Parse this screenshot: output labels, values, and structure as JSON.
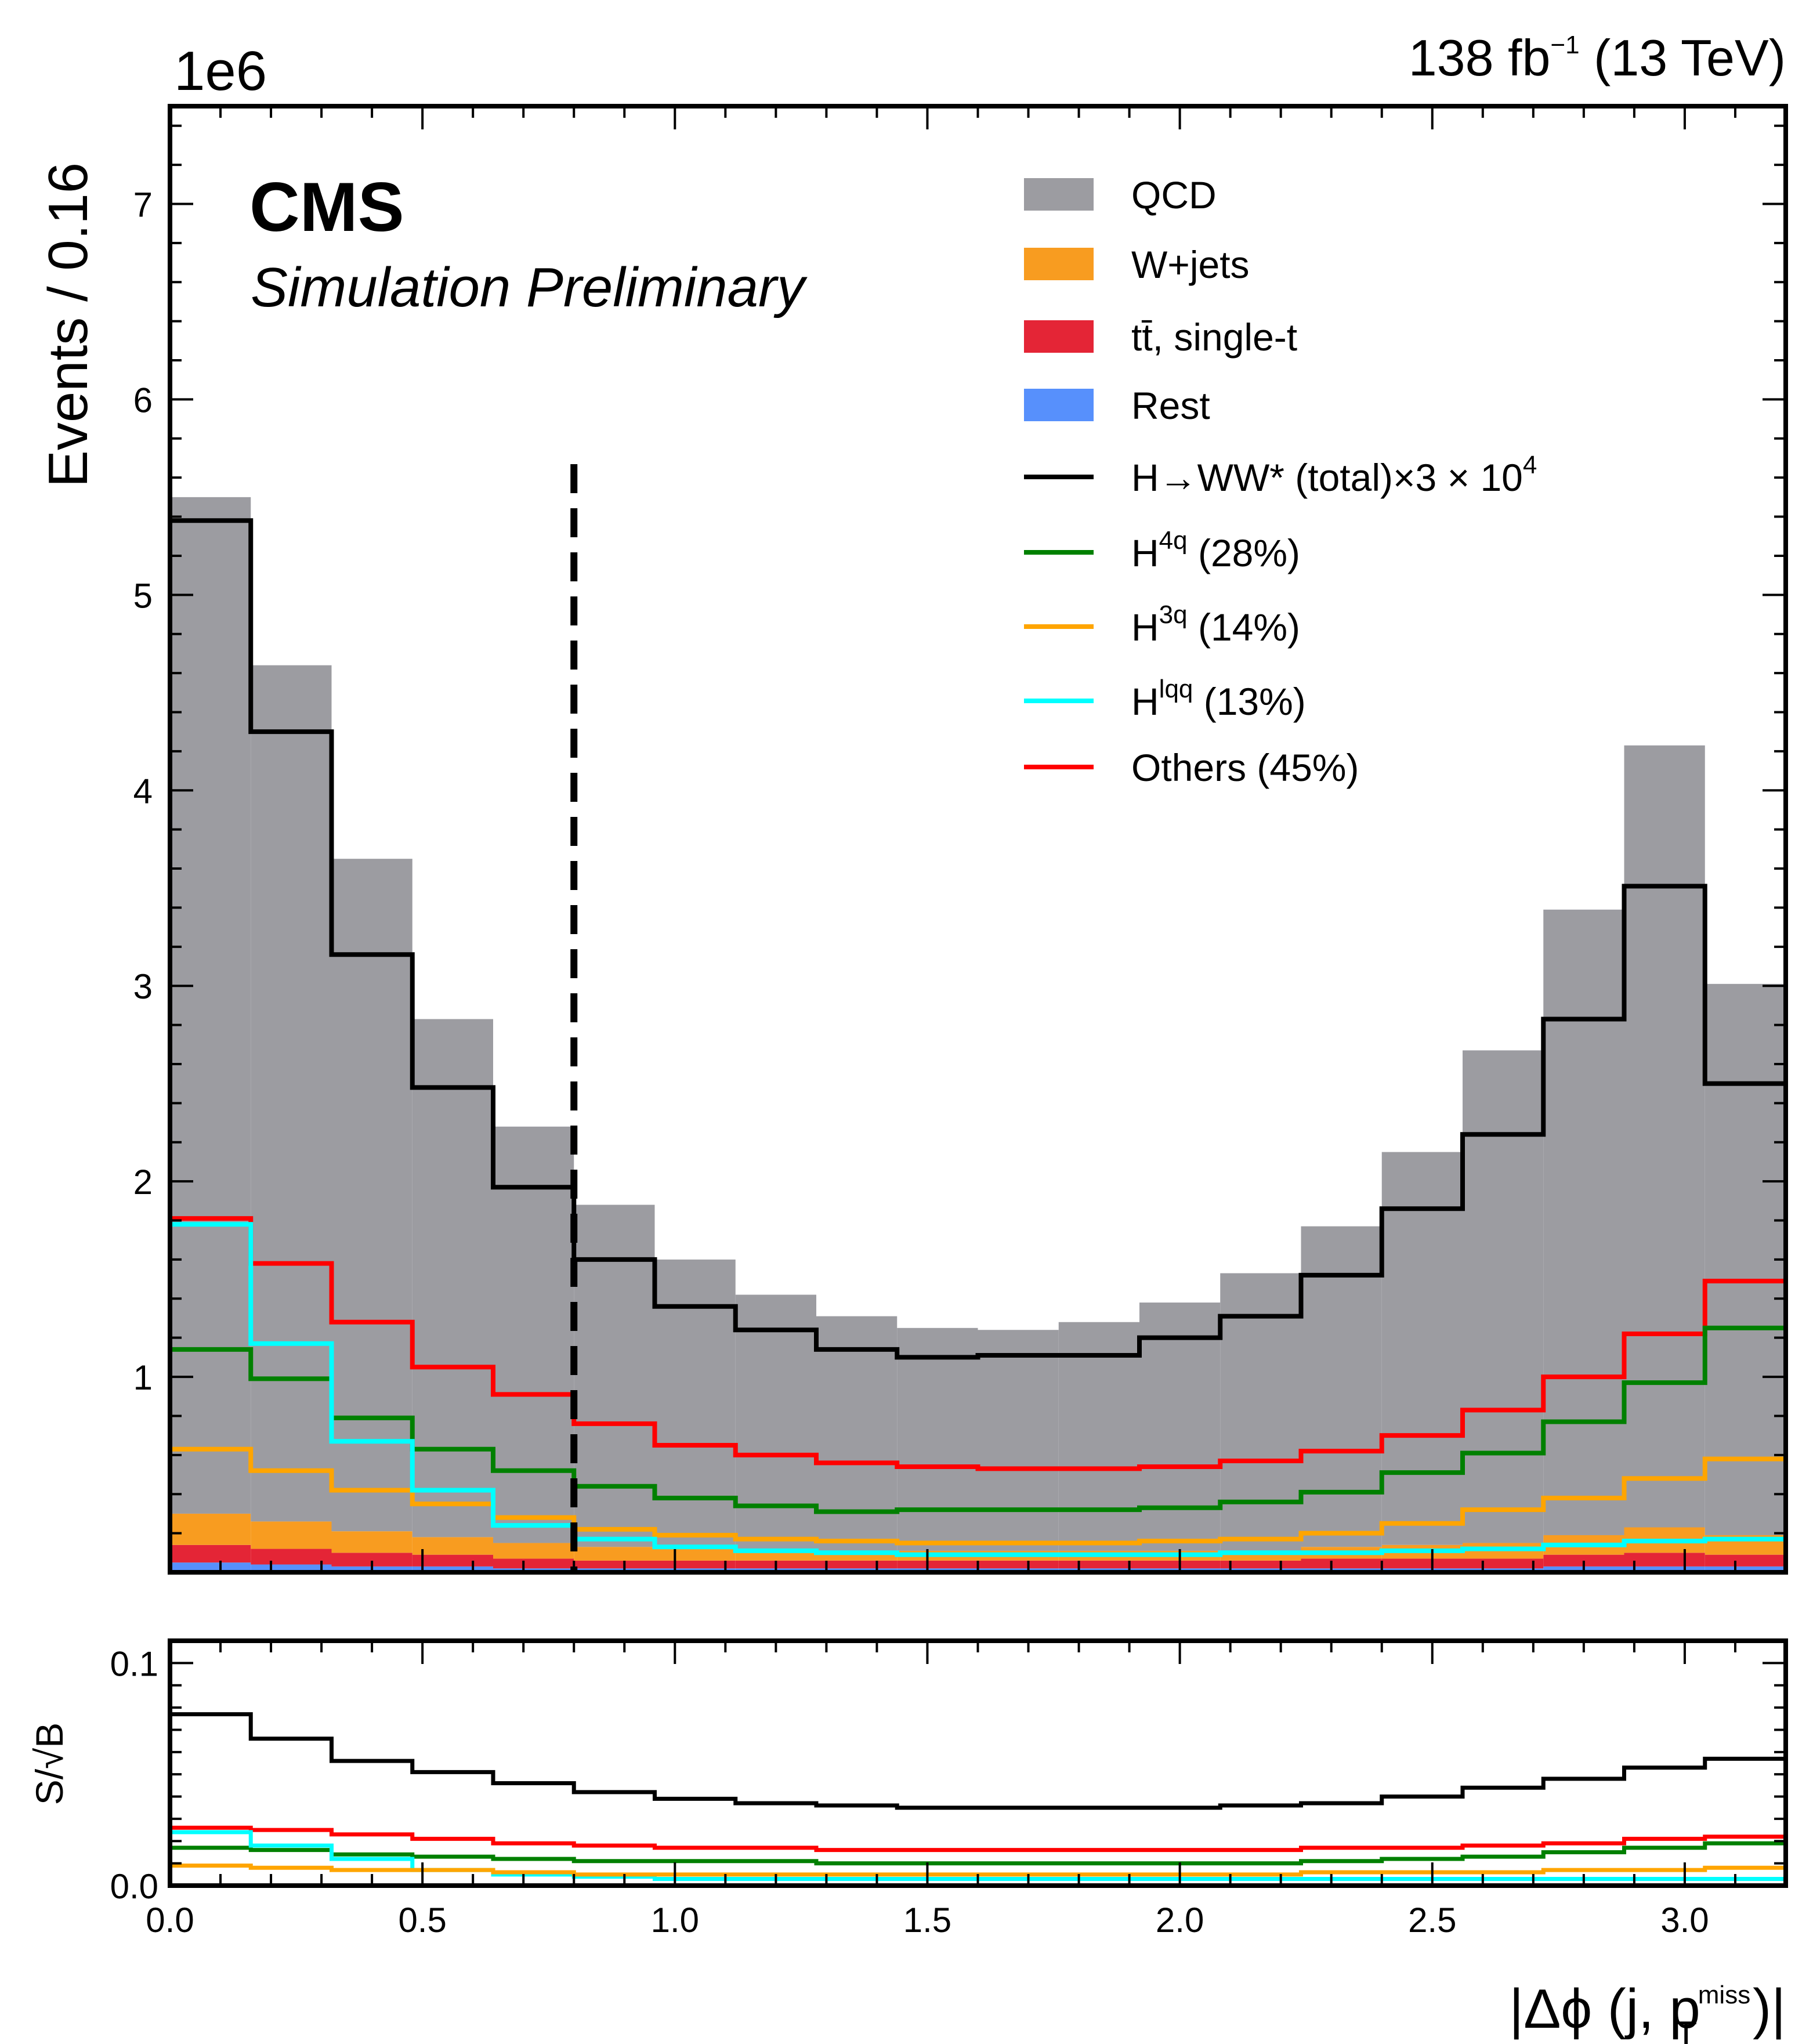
{
  "header": {
    "experiment": "CMS",
    "status": "Simulation Preliminary",
    "lumi": "138 fb",
    "lumi_sup": "−1",
    "energy": " (13 TeV)",
    "offset_label": "1e6"
  },
  "chart_data": [
    {
      "panel": "main",
      "type": "histogram",
      "ylabel": "Events / 0.16",
      "ylim": [
        0,
        7.5
      ],
      "y_multiplier": "1e6",
      "yticks": [
        "1",
        "2",
        "3",
        "4",
        "5",
        "6",
        "7"
      ],
      "bin_edges": [
        0.0,
        0.16,
        0.32,
        0.48,
        0.64,
        0.8,
        0.96,
        1.12,
        1.28,
        1.44,
        1.6,
        1.76,
        1.92,
        2.08,
        2.24,
        2.4,
        2.56,
        2.72,
        2.88,
        3.04,
        3.2
      ],
      "cut_line_x": 0.8,
      "stacked_background": [
        {
          "name": "Rest",
          "color": "#5790fc",
          "values": [
            0.05,
            0.04,
            0.03,
            0.03,
            0.02,
            0.02,
            0.02,
            0.02,
            0.02,
            0.02,
            0.02,
            0.02,
            0.02,
            0.02,
            0.02,
            0.02,
            0.02,
            0.03,
            0.03,
            0.03
          ]
        },
        {
          "name": "tt̄, single-t",
          "color": "#e42536",
          "values": [
            0.09,
            0.08,
            0.07,
            0.06,
            0.05,
            0.04,
            0.04,
            0.04,
            0.04,
            0.04,
            0.04,
            0.04,
            0.04,
            0.04,
            0.05,
            0.05,
            0.05,
            0.06,
            0.07,
            0.06
          ]
        },
        {
          "name": "W+jets",
          "color": "#f89c20",
          "values": [
            0.16,
            0.14,
            0.11,
            0.09,
            0.08,
            0.07,
            0.06,
            0.05,
            0.05,
            0.05,
            0.05,
            0.05,
            0.05,
            0.05,
            0.06,
            0.07,
            0.08,
            0.1,
            0.13,
            0.1
          ]
        },
        {
          "name": "QCD",
          "color": "#9c9ca1",
          "values": [
            5.2,
            4.38,
            3.44,
            2.65,
            2.13,
            1.75,
            1.48,
            1.31,
            1.2,
            1.14,
            1.13,
            1.17,
            1.27,
            1.42,
            1.64,
            2.01,
            2.52,
            3.2,
            4.0,
            2.82
          ]
        }
      ],
      "signal_lines": [
        {
          "name": "H→WW* (total)×3 × 10",
          "sup": "4",
          "color": "#000000",
          "values": [
            5.38,
            4.3,
            3.16,
            2.48,
            1.97,
            1.6,
            1.36,
            1.24,
            1.14,
            1.1,
            1.11,
            1.11,
            1.2,
            1.31,
            1.52,
            1.86,
            2.24,
            2.83,
            3.51,
            2.5
          ]
        },
        {
          "name": "H",
          "sup": "4q",
          "suffix": " (28%)",
          "color": "#008000",
          "values": [
            1.14,
            0.99,
            0.79,
            0.63,
            0.52,
            0.44,
            0.38,
            0.34,
            0.31,
            0.32,
            0.32,
            0.32,
            0.33,
            0.36,
            0.41,
            0.51,
            0.61,
            0.77,
            0.97,
            1.25
          ]
        },
        {
          "name": "H",
          "sup": "3q",
          "suffix": " (14%)",
          "color": "#ffa500",
          "values": [
            0.63,
            0.52,
            0.42,
            0.35,
            0.28,
            0.22,
            0.19,
            0.17,
            0.16,
            0.15,
            0.15,
            0.15,
            0.16,
            0.17,
            0.2,
            0.25,
            0.32,
            0.38,
            0.48,
            0.58
          ]
        },
        {
          "name": "H",
          "sup": "lqq",
          "suffix": " (13%)",
          "color": "#00ffff",
          "values": [
            1.78,
            1.17,
            0.67,
            0.42,
            0.24,
            0.17,
            0.13,
            0.11,
            0.1,
            0.09,
            0.09,
            0.09,
            0.09,
            0.1,
            0.1,
            0.11,
            0.12,
            0.14,
            0.16,
            0.17
          ]
        },
        {
          "name": "Others",
          "suffix": " (45%)",
          "color": "#ff0000",
          "values": [
            1.81,
            1.58,
            1.28,
            1.05,
            0.91,
            0.76,
            0.65,
            0.6,
            0.56,
            0.54,
            0.53,
            0.53,
            0.54,
            0.57,
            0.62,
            0.7,
            0.83,
            1.0,
            1.22,
            1.49
          ]
        }
      ],
      "legend_placement": "top-right"
    },
    {
      "panel": "ratio",
      "type": "histogram",
      "ylabel": "S/√B",
      "ylim": [
        0.0,
        0.11
      ],
      "yticks": [
        "0.0",
        "0.1"
      ],
      "xlim": [
        0.0,
        3.2
      ],
      "xticks": [
        "0.0",
        "0.5",
        "1.0",
        "1.5",
        "2.0",
        "2.5",
        "3.0"
      ],
      "xlabel": "|Δϕ (j, p",
      "xlabel_sup": "miss",
      "xlabel_sub": "T",
      "xlabel_end": ")|",
      "series": [
        {
          "name": "H→WW* (total)",
          "color": "#000000",
          "values": [
            0.077,
            0.066,
            0.056,
            0.051,
            0.046,
            0.042,
            0.039,
            0.037,
            0.036,
            0.035,
            0.035,
            0.035,
            0.035,
            0.036,
            0.037,
            0.04,
            0.044,
            0.048,
            0.053,
            0.057
          ]
        },
        {
          "name": "Others",
          "color": "#ff0000",
          "values": [
            0.026,
            0.025,
            0.023,
            0.021,
            0.019,
            0.018,
            0.017,
            0.017,
            0.016,
            0.016,
            0.016,
            0.016,
            0.016,
            0.016,
            0.017,
            0.017,
            0.018,
            0.019,
            0.021,
            0.022
          ]
        },
        {
          "name": "H4q",
          "color": "#008000",
          "values": [
            0.017,
            0.016,
            0.014,
            0.013,
            0.012,
            0.011,
            0.011,
            0.011,
            0.01,
            0.01,
            0.01,
            0.01,
            0.01,
            0.01,
            0.011,
            0.012,
            0.013,
            0.015,
            0.017,
            0.019
          ]
        },
        {
          "name": "Hlqq",
          "color": "#00ffff",
          "values": [
            0.024,
            0.018,
            0.012,
            0.007,
            0.005,
            0.004,
            0.003,
            0.003,
            0.003,
            0.003,
            0.003,
            0.003,
            0.003,
            0.003,
            0.003,
            0.003,
            0.003,
            0.003,
            0.003,
            0.003
          ]
        },
        {
          "name": "H3q",
          "color": "#ffa500",
          "values": [
            0.009,
            0.008,
            0.007,
            0.007,
            0.006,
            0.005,
            0.005,
            0.005,
            0.005,
            0.005,
            0.005,
            0.005,
            0.005,
            0.005,
            0.006,
            0.006,
            0.006,
            0.007,
            0.007,
            0.008
          ]
        }
      ]
    }
  ]
}
